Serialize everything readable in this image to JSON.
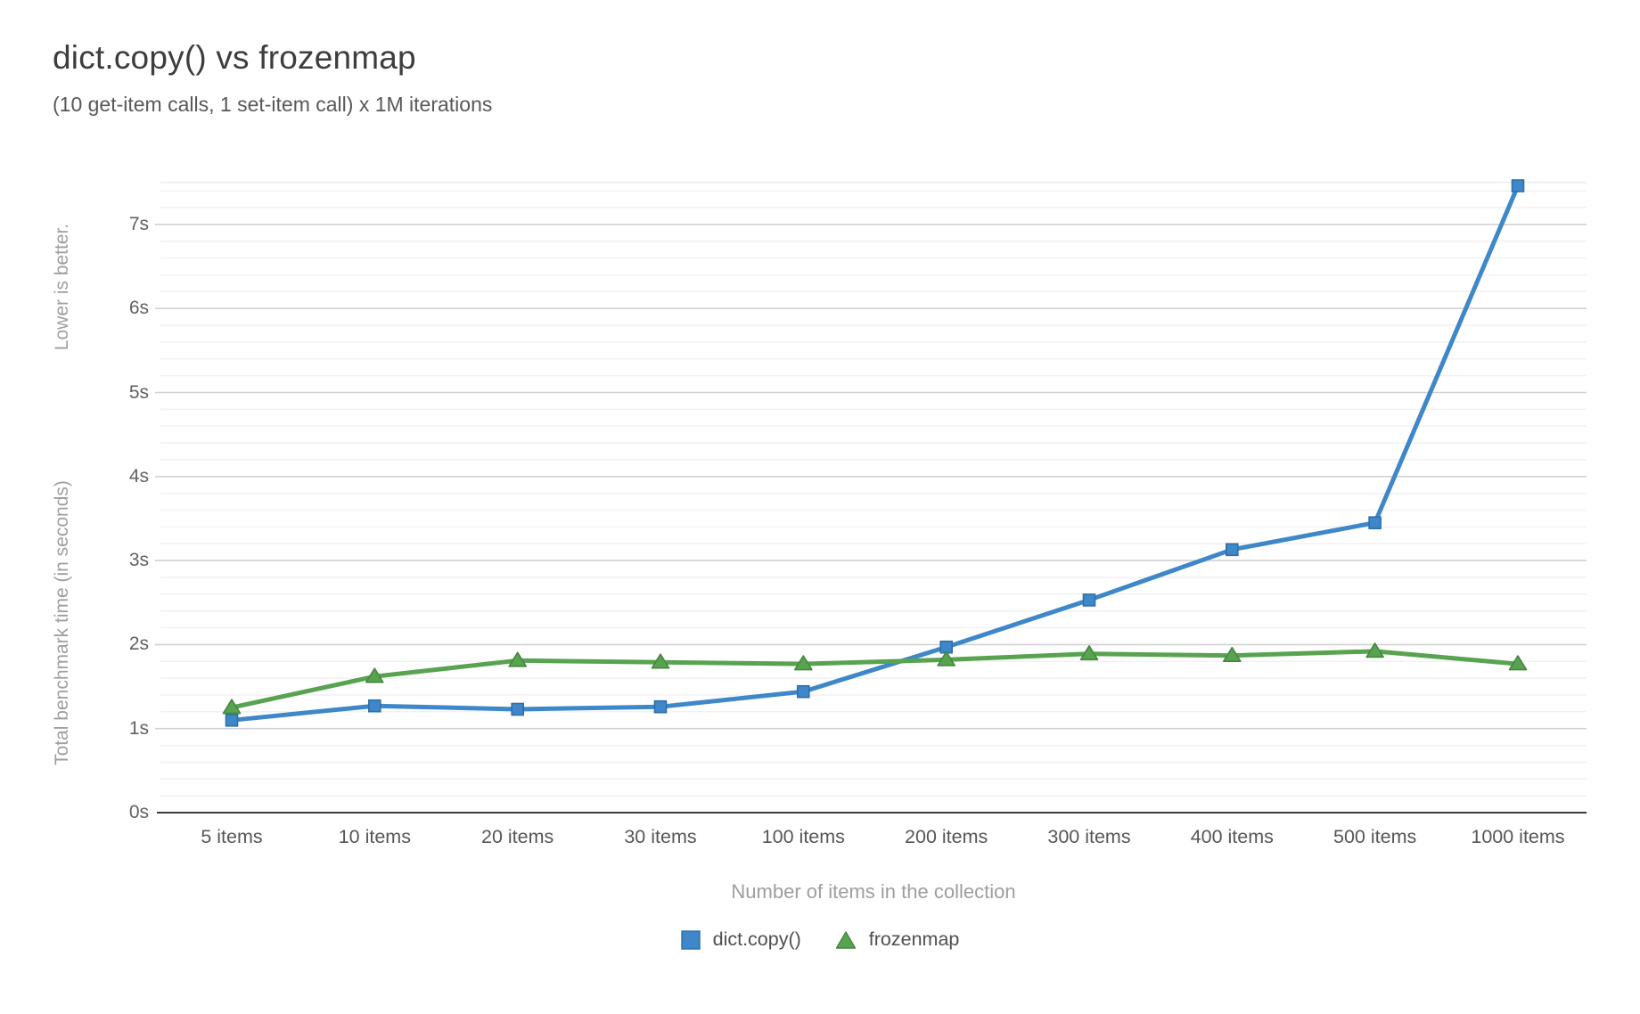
{
  "chart_data": {
    "type": "line",
    "title": "dict.copy() vs frozenmap",
    "subtitle": "(10 get-item calls, 1 set-item call) x 1M iterations",
    "xlabel": "Number of items in the collection",
    "ylabel": "Total benchmark time (in seconds)",
    "ylabel_secondary": "Lower is better.",
    "categories": [
      "5 items",
      "10 items",
      "20 items",
      "30 items",
      "100 items",
      "200 items",
      "300 items",
      "400 items",
      "500 items",
      "1000 items"
    ],
    "series": [
      {
        "name": "dict.copy()",
        "marker": "square",
        "color": "#3e87c8",
        "marker_stroke": "#2f6fa8",
        "values": [
          1.1,
          1.27,
          1.23,
          1.26,
          1.44,
          1.97,
          2.53,
          3.13,
          3.45,
          7.46
        ]
      },
      {
        "name": "frozenmap",
        "marker": "triangle",
        "color": "#57a34f",
        "marker_stroke": "#468740",
        "values": [
          1.25,
          1.62,
          1.81,
          1.79,
          1.77,
          1.82,
          1.89,
          1.87,
          1.92,
          1.77
        ]
      }
    ],
    "yticks": [
      "0s",
      "1s",
      "2s",
      "3s",
      "4s",
      "5s",
      "6s",
      "7s"
    ],
    "ylim": [
      0,
      7.5
    ],
    "y_minor_step": 0.2,
    "grid": "horizontal major + minor, no vertical",
    "legend_position": "bottom"
  }
}
